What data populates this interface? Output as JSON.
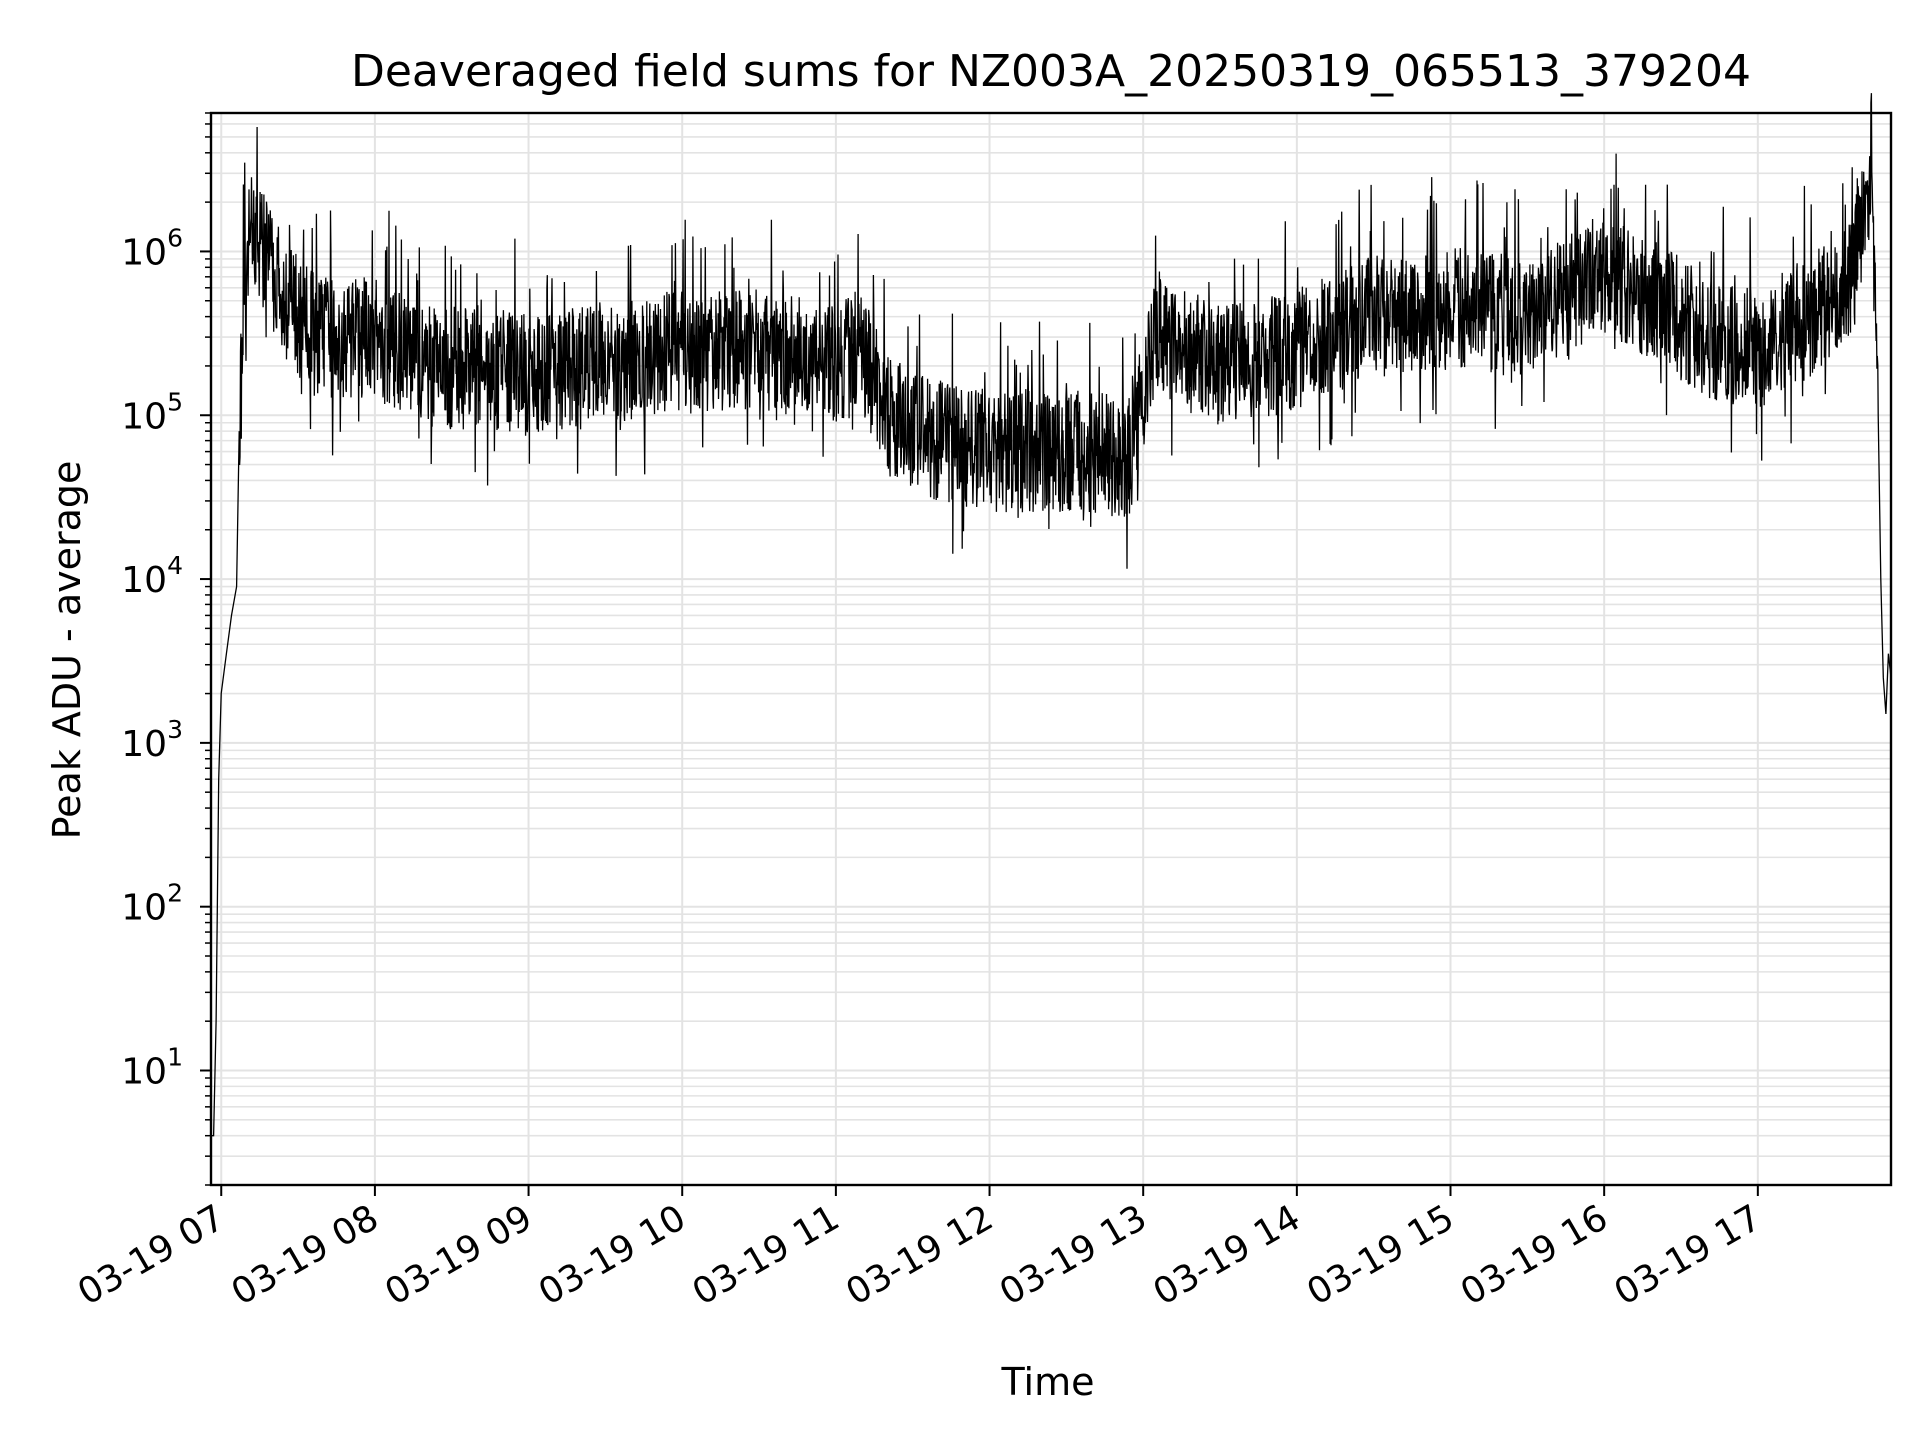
{
  "chart_data": {
    "type": "line",
    "title": "Deaveraged field sums for NZ003A_20250319_065513_379204",
    "xlabel": "Time",
    "ylabel": "Peak ADU - average",
    "x_scale": "time",
    "y_scale": "log",
    "xlim": [
      "2025-03-19 06:56",
      "2025-03-19 17:52"
    ],
    "ylim": [
      2,
      7000000
    ],
    "grid": true,
    "legend": "none",
    "line_color": "#000000",
    "grid_color": "#e3e3e3",
    "x_ticks": [
      {
        "value": "2025-03-19 07:00",
        "label": "03-19 07"
      },
      {
        "value": "2025-03-19 08:00",
        "label": "03-19 08"
      },
      {
        "value": "2025-03-19 09:00",
        "label": "03-19 09"
      },
      {
        "value": "2025-03-19 10:00",
        "label": "03-19 10"
      },
      {
        "value": "2025-03-19 11:00",
        "label": "03-19 11"
      },
      {
        "value": "2025-03-19 12:00",
        "label": "03-19 12"
      },
      {
        "value": "2025-03-19 13:00",
        "label": "03-19 13"
      },
      {
        "value": "2025-03-19 14:00",
        "label": "03-19 14"
      },
      {
        "value": "2025-03-19 15:00",
        "label": "03-19 15"
      },
      {
        "value": "2025-03-19 16:00",
        "label": "03-19 16"
      },
      {
        "value": "2025-03-19 17:00",
        "label": "03-19 17"
      }
    ],
    "y_ticks": [
      {
        "value": 10,
        "base": "10",
        "exp": "1"
      },
      {
        "value": 100,
        "base": "10",
        "exp": "2"
      },
      {
        "value": 1000,
        "base": "10",
        "exp": "3"
      },
      {
        "value": 10000,
        "base": "10",
        "exp": "4"
      },
      {
        "value": 100000,
        "base": "10",
        "exp": "5"
      },
      {
        "value": 1000000,
        "base": "10",
        "exp": "6"
      }
    ],
    "series": [
      {
        "points": [
          [
            "2025-03-19 06:56",
            4
          ],
          [
            "2025-03-19 06:57",
            4
          ],
          [
            "2025-03-19 06:58",
            20
          ],
          [
            "2025-03-19 06:59",
            600
          ],
          [
            "2025-03-19 07:00",
            2000
          ],
          [
            "2025-03-19 07:02",
            3500
          ],
          [
            "2025-03-19 07:04",
            6000
          ],
          [
            "2025-03-19 07:06",
            9000
          ],
          [
            "2025-03-19 07:07",
            80000
          ],
          [
            "2025-03-19 07:08",
            300000
          ],
          [
            "2025-03-19 07:10",
            900000
          ],
          [
            "2025-03-19 07:12",
            1500000
          ],
          [
            "2025-03-19 07:15",
            1200000
          ],
          [
            "2025-03-19 07:20",
            800000
          ],
          [
            "2025-03-19 07:25",
            500000
          ],
          [
            "2025-03-19 07:30",
            400000
          ],
          [
            "2025-03-19 07:40",
            300000
          ],
          [
            "2025-03-19 08:00",
            300000
          ],
          [
            "2025-03-19 08:20",
            200000
          ],
          [
            "2025-03-19 08:40",
            200000
          ],
          [
            "2025-03-19 09:00",
            180000
          ],
          [
            "2025-03-19 09:30",
            200000
          ],
          [
            "2025-03-19 10:00",
            250000
          ],
          [
            "2025-03-19 10:30",
            250000
          ],
          [
            "2025-03-19 11:00",
            200000
          ],
          [
            "2025-03-19 11:10",
            250000
          ],
          [
            "2025-03-19 11:20",
            100000
          ],
          [
            "2025-03-19 11:40",
            70000
          ],
          [
            "2025-03-19 12:00",
            60000
          ],
          [
            "2025-03-19 12:20",
            60000
          ],
          [
            "2025-03-19 12:40",
            60000
          ],
          [
            "2025-03-19 12:55",
            55000
          ],
          [
            "2025-03-19 13:05",
            300000
          ],
          [
            "2025-03-19 13:30",
            200000
          ],
          [
            "2025-03-19 14:00",
            250000
          ],
          [
            "2025-03-19 14:30",
            400000
          ],
          [
            "2025-03-19 15:00",
            450000
          ],
          [
            "2025-03-19 15:30",
            400000
          ],
          [
            "2025-03-19 15:45",
            500000
          ],
          [
            "2025-03-19 16:00",
            700000
          ],
          [
            "2025-03-19 16:20",
            500000
          ],
          [
            "2025-03-19 16:40",
            300000
          ],
          [
            "2025-03-19 17:00",
            250000
          ],
          [
            "2025-03-19 17:20",
            400000
          ],
          [
            "2025-03-19 17:35",
            600000
          ],
          [
            "2025-03-19 17:42",
            1800000
          ],
          [
            "2025-03-19 17:45",
            1500000
          ],
          [
            "2025-03-19 17:47",
            100000
          ],
          [
            "2025-03-19 17:48",
            10000
          ],
          [
            "2025-03-19 17:49",
            2500
          ],
          [
            "2025-03-19 17:50",
            1500
          ],
          [
            "2025-03-19 17:51",
            3500
          ],
          [
            "2025-03-19 17:52",
            2500
          ]
        ]
      }
    ]
  }
}
